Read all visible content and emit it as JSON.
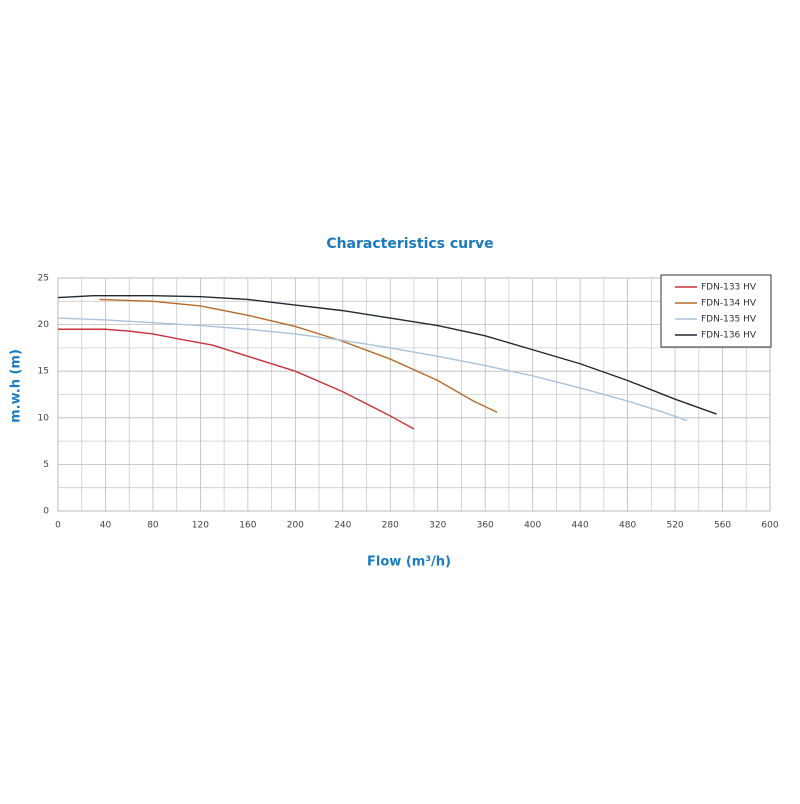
{
  "chart_data": {
    "type": "line",
    "title": "Characteristics curve",
    "x_label": "Flow (m³/h)",
    "y_label": "m.w.h (m)",
    "xlim": [
      0,
      600
    ],
    "xticks": [
      0,
      40,
      80,
      120,
      160,
      200,
      240,
      280,
      320,
      360,
      400,
      440,
      480,
      520,
      560,
      600
    ],
    "ylim": [
      0,
      25
    ],
    "yticks": [
      0,
      5,
      10,
      15,
      20,
      25
    ],
    "grid": true,
    "minor_grid": true,
    "legend": "top-right",
    "series": [
      {
        "name": "FDN-133 HV",
        "color": "#c8323a",
        "x": [
          0,
          40,
          60,
          80,
          100,
          130,
          160,
          200,
          240,
          280,
          300
        ],
        "values": [
          19.5,
          19.5,
          19.3,
          19,
          18.5,
          17.8,
          16.6,
          15,
          12.8,
          10.2,
          8.8
        ]
      },
      {
        "name": "FDN-134 HV",
        "color": "#b86a2a",
        "x": [
          35,
          80,
          120,
          160,
          200,
          240,
          280,
          320,
          350,
          370
        ],
        "values": [
          22.7,
          22.5,
          22,
          21,
          19.8,
          18.2,
          16.3,
          14,
          11.8,
          10.6
        ]
      },
      {
        "name": "FDN-135 HV",
        "color": "#a9c3dc",
        "x": [
          0,
          40,
          80,
          120,
          160,
          200,
          240,
          280,
          320,
          360,
          400,
          440,
          480,
          510,
          530
        ],
        "values": [
          20.7,
          20.5,
          20.2,
          19.9,
          19.5,
          19,
          18.3,
          17.5,
          16.6,
          15.6,
          14.5,
          13.2,
          11.8,
          10.6,
          9.7
        ]
      },
      {
        "name": "FDN-136 HV",
        "color": "#1f2a33",
        "x": [
          0,
          30,
          80,
          120,
          160,
          200,
          240,
          280,
          320,
          360,
          400,
          440,
          480,
          520,
          555
        ],
        "values": [
          22.9,
          23.1,
          23.1,
          23,
          22.7,
          22.1,
          21.5,
          20.7,
          19.9,
          18.8,
          17.3,
          15.8,
          14,
          12,
          10.4
        ]
      }
    ]
  }
}
